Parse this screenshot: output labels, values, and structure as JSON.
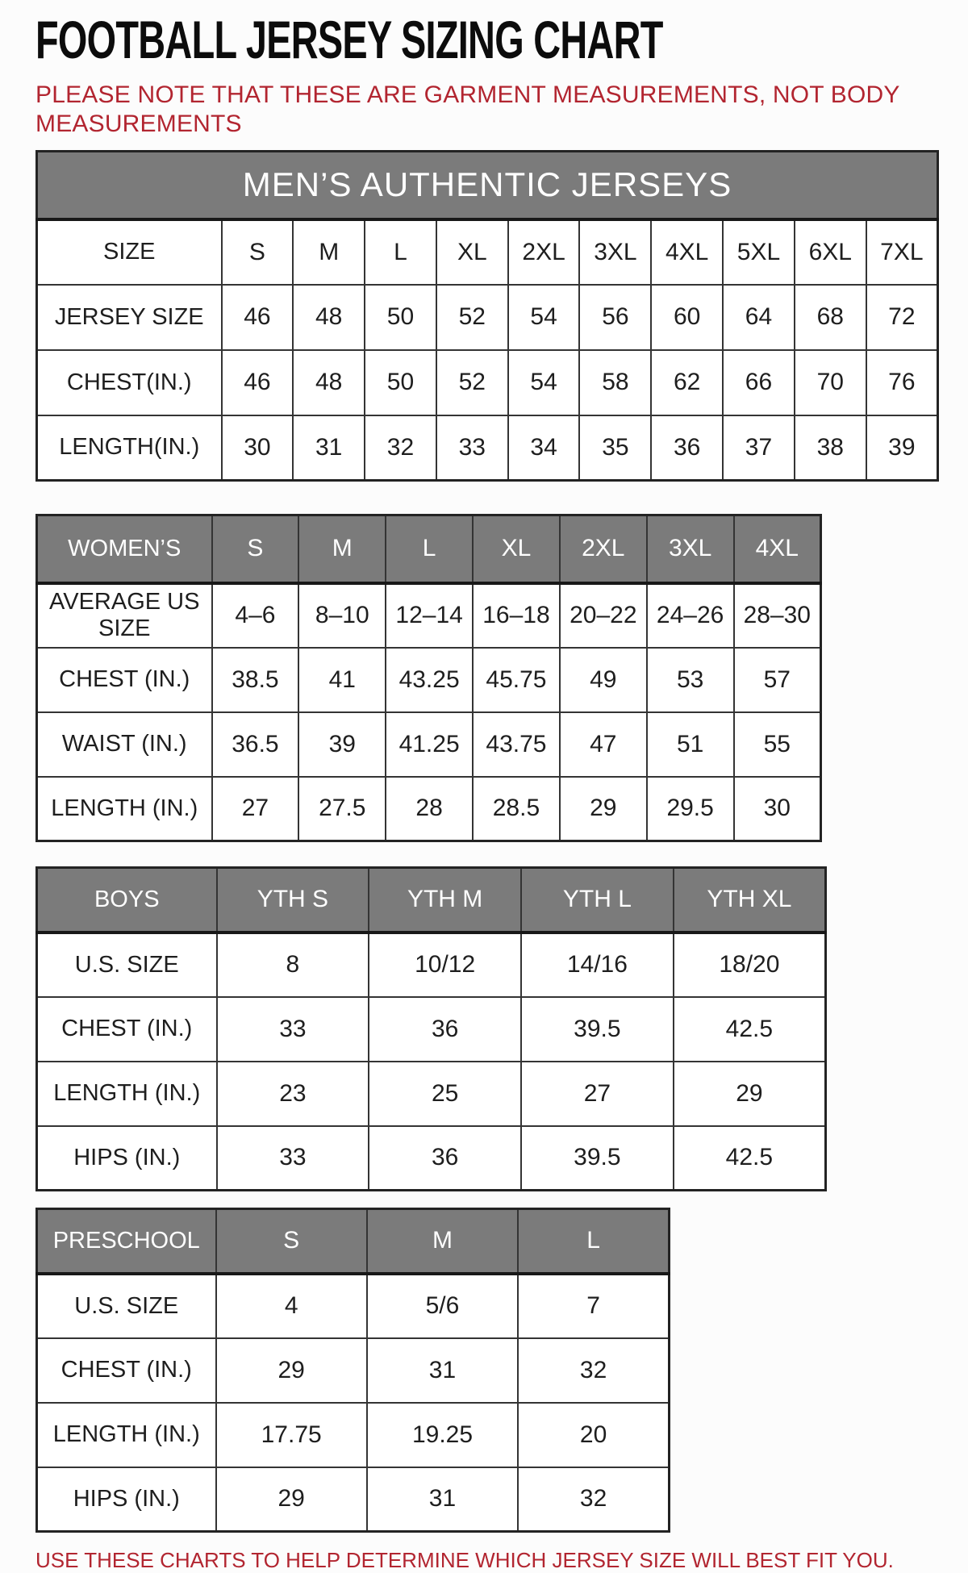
{
  "page": {
    "title": "FOOTBALL JERSEY SIZING CHART",
    "note": "PLEASE NOTE THAT THESE ARE GARMENT MEASUREMENTS, NOT BODY MEASUREMENTS",
    "footer": "USE THESE CHARTS TO HELP DETERMINE WHICH JERSEY SIZE WILL BEST FIT YOU."
  },
  "colors": {
    "header_gray": "#7b7b7b",
    "accent_red": "#b22530",
    "border_dark": "#343434",
    "text": "#1e1e1e",
    "banner_text": "#ffffff"
  },
  "tables": [
    {
      "name": "mens-authentic-jerseys",
      "banner": "MEN’S AUTHENTIC JERSEYS",
      "size_row": {
        "label": "SIZE",
        "gray": false,
        "cols": [
          "S",
          "M",
          "L",
          "XL",
          "2XL",
          "3XL",
          "4XL",
          "5XL",
          "6XL",
          "7XL"
        ]
      },
      "rows": [
        {
          "label": "JERSEY SIZE",
          "values": [
            "46",
            "48",
            "50",
            "52",
            "54",
            "56",
            "60",
            "64",
            "68",
            "72"
          ]
        },
        {
          "label": "CHEST(IN.)",
          "values": [
            "46",
            "48",
            "50",
            "52",
            "54",
            "58",
            "62",
            "66",
            "70",
            "76"
          ]
        },
        {
          "label": "LENGTH(IN.)",
          "values": [
            "30",
            "31",
            "32",
            "33",
            "34",
            "35",
            "36",
            "37",
            "38",
            "39"
          ]
        }
      ]
    },
    {
      "name": "womens-jerseys",
      "banner": null,
      "size_row": {
        "label": "WOMEN’S",
        "gray": true,
        "cols": [
          "S",
          "M",
          "L",
          "XL",
          "2XL",
          "3XL",
          "4XL"
        ]
      },
      "rows": [
        {
          "label": "AVERAGE US SIZE",
          "values": [
            "4–6",
            "8–10",
            "12–14",
            "16–18",
            "20–22",
            "24–26",
            "28–30"
          ]
        },
        {
          "label": "CHEST (IN.)",
          "values": [
            "38.5",
            "41",
            "43.25",
            "45.75",
            "49",
            "53",
            "57"
          ]
        },
        {
          "label": "WAIST (IN.)",
          "values": [
            "36.5",
            "39",
            "41.25",
            "43.75",
            "47",
            "51",
            "55"
          ]
        },
        {
          "label": "LENGTH (IN.)",
          "values": [
            "27",
            "27.5",
            "28",
            "28.5",
            "29",
            "29.5",
            "30"
          ]
        }
      ]
    },
    {
      "name": "boys-jerseys",
      "banner": null,
      "size_row": {
        "label": "BOYS",
        "gray": true,
        "cols": [
          "YTH S",
          "YTH M",
          "YTH L",
          "YTH XL"
        ]
      },
      "rows": [
        {
          "label": "U.S. SIZE",
          "values": [
            "8",
            "10/12",
            "14/16",
            "18/20"
          ]
        },
        {
          "label": "CHEST (IN.)",
          "values": [
            "33",
            "36",
            "39.5",
            "42.5"
          ]
        },
        {
          "label": "LENGTH (IN.)",
          "values": [
            "23",
            "25",
            "27",
            "29"
          ]
        },
        {
          "label": "HIPS (IN.)",
          "values": [
            "33",
            "36",
            "39.5",
            "42.5"
          ]
        }
      ]
    },
    {
      "name": "preschool-jerseys",
      "banner": null,
      "size_row": {
        "label": "PRESCHOOL",
        "gray": true,
        "cols": [
          "S",
          "M",
          "L"
        ]
      },
      "rows": [
        {
          "label": "U.S. SIZE",
          "values": [
            "4",
            "5/6",
            "7"
          ]
        },
        {
          "label": "CHEST (IN.)",
          "values": [
            "29",
            "31",
            "32"
          ]
        },
        {
          "label": "LENGTH (IN.)",
          "values": [
            "17.75",
            "19.25",
            "20"
          ]
        },
        {
          "label": "HIPS (IN.)",
          "values": [
            "29",
            "31",
            "32"
          ]
        }
      ]
    }
  ]
}
